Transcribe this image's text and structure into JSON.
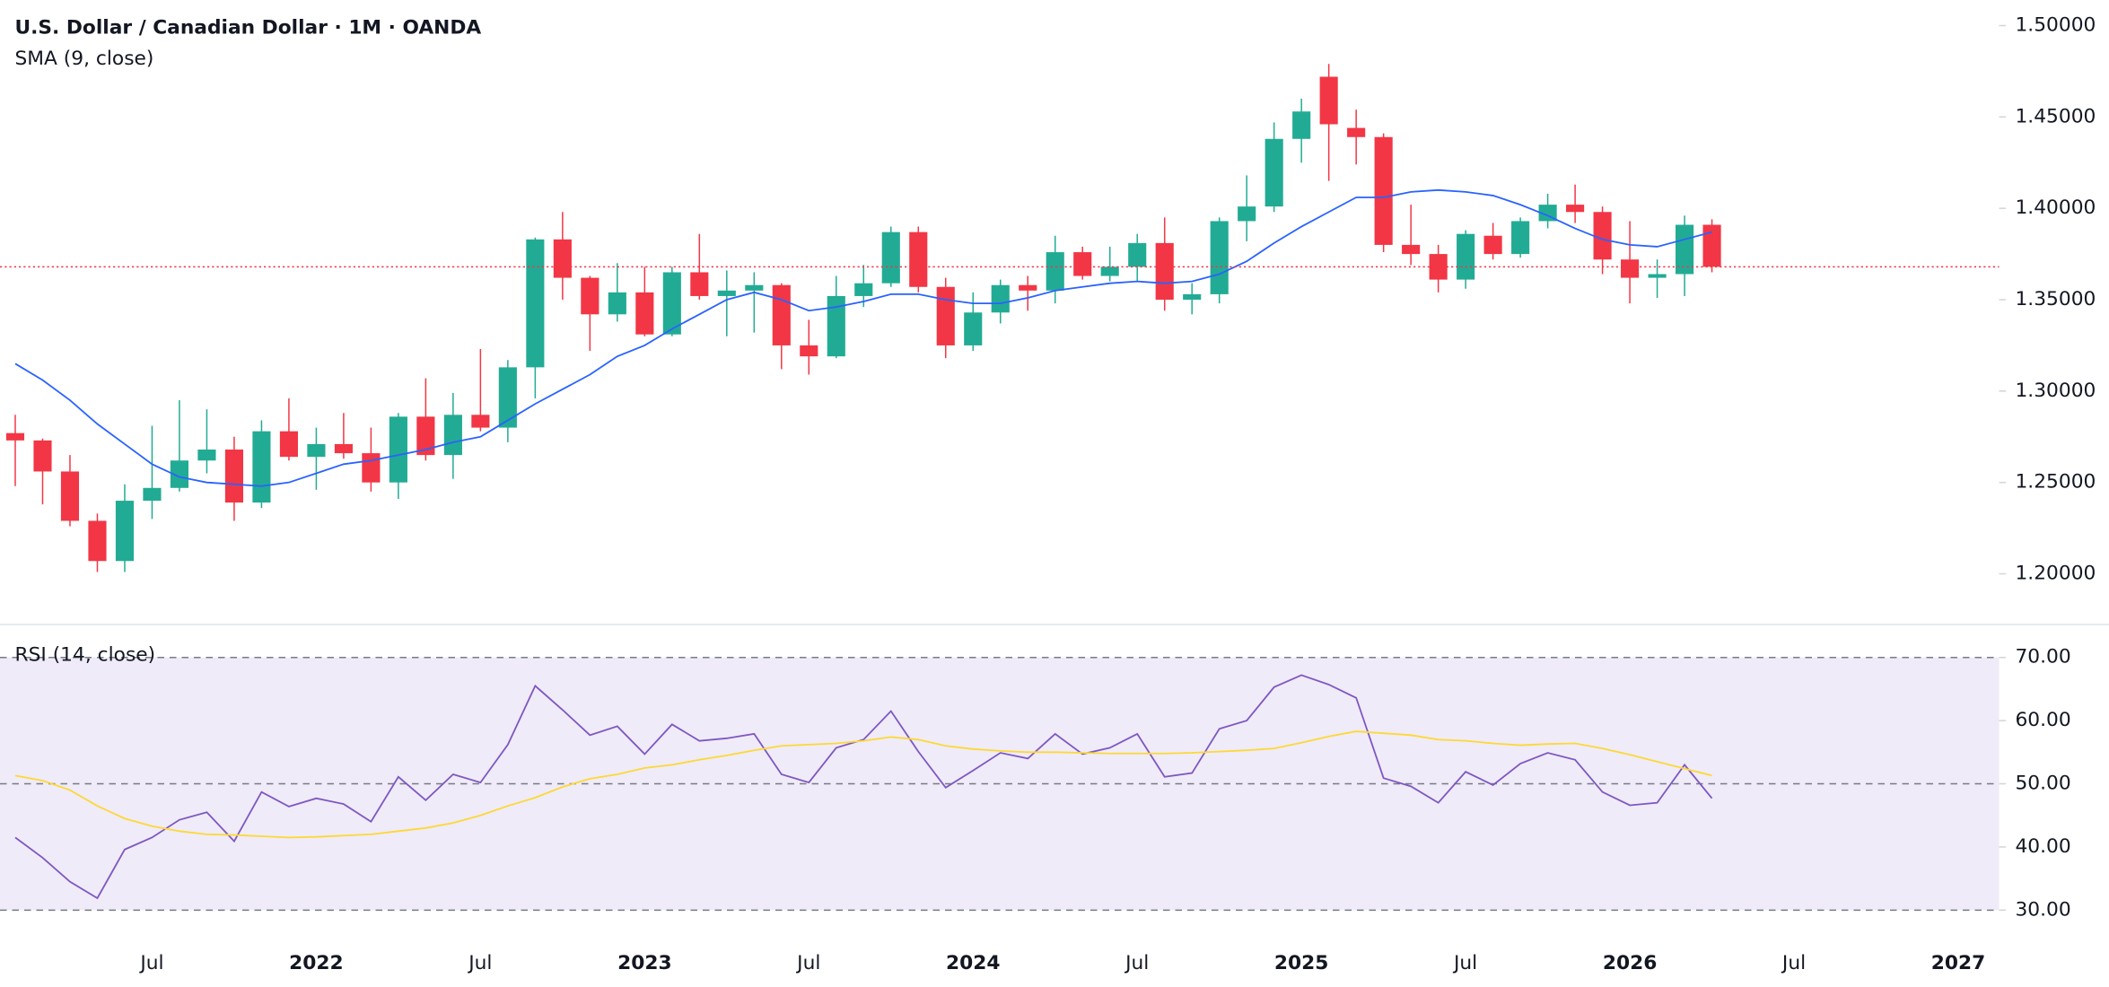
{
  "chart_data": [
    {
      "type": "candlestick",
      "title": "U.S. Dollar / Canadian Dollar · 1M · OANDA",
      "x": [
        "2021-02",
        "2021-03",
        "2021-04",
        "2021-05",
        "2021-06",
        "2021-07",
        "2021-08",
        "2021-09",
        "2021-10",
        "2021-11",
        "2021-12",
        "2022-01",
        "2022-02",
        "2022-03",
        "2022-04",
        "2022-05",
        "2022-06",
        "2022-07",
        "2022-08",
        "2022-09",
        "2022-10",
        "2022-11",
        "2022-12",
        "2023-01",
        "2023-02",
        "2023-03",
        "2023-04",
        "2023-05",
        "2023-06",
        "2023-07",
        "2023-08",
        "2023-09",
        "2023-10",
        "2023-11",
        "2023-12",
        "2024-01",
        "2024-02",
        "2024-03",
        "2024-04",
        "2024-05",
        "2024-06",
        "2024-07",
        "2024-08",
        "2024-09",
        "2024-10",
        "2024-11",
        "2024-12",
        "2025-01",
        "2025-02",
        "2025-03",
        "2025-04",
        "2025-05",
        "2025-06",
        "2025-07",
        "2025-08",
        "2025-09",
        "2025-10",
        "2025-11",
        "2025-12",
        "2026-01",
        "2026-02",
        "2026-03",
        "2026-04"
      ],
      "open": [
        1.277,
        1.273,
        1.256,
        1.229,
        1.207,
        1.24,
        1.247,
        1.262,
        1.268,
        1.239,
        1.278,
        1.264,
        1.271,
        1.266,
        1.25,
        1.286,
        1.265,
        1.287,
        1.28,
        1.313,
        1.383,
        1.362,
        1.342,
        1.354,
        1.331,
        1.365,
        1.352,
        1.355,
        1.358,
        1.325,
        1.319,
        1.352,
        1.359,
        1.387,
        1.357,
        1.325,
        1.343,
        1.358,
        1.355,
        1.376,
        1.363,
        1.368,
        1.381,
        1.35,
        1.353,
        1.393,
        1.401,
        1.438,
        1.472,
        1.444,
        1.439,
        1.38,
        1.375,
        1.361,
        1.385,
        1.375,
        1.393,
        1.402,
        1.398,
        1.372,
        1.362,
        1.364,
        1.391
      ],
      "high": [
        1.287,
        1.274,
        1.265,
        1.233,
        1.249,
        1.281,
        1.295,
        1.29,
        1.275,
        1.284,
        1.296,
        1.28,
        1.288,
        1.28,
        1.288,
        1.307,
        1.299,
        1.323,
        1.317,
        1.384,
        1.398,
        1.363,
        1.37,
        1.368,
        1.368,
        1.386,
        1.366,
        1.365,
        1.359,
        1.339,
        1.363,
        1.369,
        1.39,
        1.39,
        1.362,
        1.354,
        1.361,
        1.363,
        1.385,
        1.379,
        1.379,
        1.386,
        1.395,
        1.359,
        1.395,
        1.418,
        1.447,
        1.46,
        1.479,
        1.454,
        1.441,
        1.402,
        1.38,
        1.388,
        1.392,
        1.395,
        1.408,
        1.413,
        1.401,
        1.393,
        1.372,
        1.396,
        1.394
      ],
      "low": [
        1.248,
        1.238,
        1.226,
        1.201,
        1.201,
        1.23,
        1.245,
        1.255,
        1.229,
        1.236,
        1.262,
        1.246,
        1.263,
        1.245,
        1.241,
        1.262,
        1.252,
        1.278,
        1.272,
        1.296,
        1.35,
        1.322,
        1.338,
        1.33,
        1.33,
        1.35,
        1.33,
        1.332,
        1.312,
        1.309,
        1.318,
        1.346,
        1.357,
        1.354,
        1.318,
        1.322,
        1.337,
        1.344,
        1.348,
        1.361,
        1.36,
        1.36,
        1.344,
        1.342,
        1.348,
        1.382,
        1.398,
        1.425,
        1.415,
        1.424,
        1.376,
        1.369,
        1.354,
        1.356,
        1.372,
        1.373,
        1.389,
        1.392,
        1.364,
        1.348,
        1.351,
        1.352,
        1.365
      ],
      "close": [
        1.273,
        1.256,
        1.229,
        1.207,
        1.24,
        1.247,
        1.262,
        1.268,
        1.239,
        1.278,
        1.264,
        1.271,
        1.266,
        1.25,
        1.286,
        1.265,
        1.287,
        1.28,
        1.313,
        1.383,
        1.362,
        1.342,
        1.354,
        1.331,
        1.365,
        1.352,
        1.355,
        1.358,
        1.325,
        1.319,
        1.352,
        1.359,
        1.387,
        1.357,
        1.325,
        1.343,
        1.358,
        1.355,
        1.376,
        1.363,
        1.368,
        1.381,
        1.35,
        1.353,
        1.393,
        1.401,
        1.438,
        1.453,
        1.446,
        1.439,
        1.38,
        1.375,
        1.361,
        1.386,
        1.375,
        1.393,
        1.402,
        1.398,
        1.372,
        1.362,
        1.364,
        1.391,
        1.368
      ],
      "series": [
        {
          "name": "SMA (9, close)",
          "color": "#2962ff",
          "values": [
            1.315,
            1.306,
            1.295,
            1.282,
            1.271,
            1.26,
            1.253,
            1.25,
            1.249,
            1.248,
            1.25,
            1.255,
            1.26,
            1.262,
            1.265,
            1.268,
            1.272,
            1.275,
            1.284,
            1.293,
            1.301,
            1.309,
            1.319,
            1.325,
            1.334,
            1.342,
            1.35,
            1.354,
            1.35,
            1.344,
            1.346,
            1.349,
            1.353,
            1.353,
            1.35,
            1.348,
            1.348,
            1.351,
            1.355,
            1.357,
            1.359,
            1.36,
            1.359,
            1.36,
            1.364,
            1.371,
            1.381,
            1.39,
            1.398,
            1.406,
            1.406,
            1.409,
            1.41,
            1.409,
            1.407,
            1.402,
            1.396,
            1.389,
            1.383,
            1.38,
            1.379,
            1.383,
            1.387
          ]
        }
      ],
      "up_color": "#22ab94",
      "down_color": "#f23645",
      "xlim": [
        "2021-01",
        "2027-02"
      ],
      "ylim": [
        1.173,
        1.514
      ],
      "yticks": [
        {
          "value": 1.5,
          "label": "1.50000"
        },
        {
          "value": 1.45,
          "label": "1.45000"
        },
        {
          "value": 1.4,
          "label": "1.40000"
        },
        {
          "value": 1.35,
          "label": "1.35000"
        },
        {
          "value": 1.3,
          "label": "1.30000"
        },
        {
          "value": 1.25,
          "label": "1.25000"
        },
        {
          "value": 1.2,
          "label": "1.20000"
        }
      ]
    },
    {
      "type": "line",
      "title": "RSI (14, close)",
      "x": [
        "2021-02",
        "2021-03",
        "2021-04",
        "2021-05",
        "2021-06",
        "2021-07",
        "2021-08",
        "2021-09",
        "2021-10",
        "2021-11",
        "2021-12",
        "2022-01",
        "2022-02",
        "2022-03",
        "2022-04",
        "2022-05",
        "2022-06",
        "2022-07",
        "2022-08",
        "2022-09",
        "2022-10",
        "2022-11",
        "2022-12",
        "2023-01",
        "2023-02",
        "2023-03",
        "2023-04",
        "2023-05",
        "2023-06",
        "2023-07",
        "2023-08",
        "2023-09",
        "2023-10",
        "2023-11",
        "2023-12",
        "2024-01",
        "2024-02",
        "2024-03",
        "2024-04",
        "2024-05",
        "2024-06",
        "2024-07",
        "2024-08",
        "2024-09",
        "2024-10",
        "2024-11",
        "2024-12",
        "2025-01",
        "2025-02",
        "2025-03",
        "2025-04",
        "2025-05",
        "2025-06",
        "2025-07",
        "2025-08",
        "2025-09",
        "2025-10",
        "2025-11",
        "2025-12",
        "2026-01",
        "2026-02",
        "2026-03",
        "2026-04"
      ],
      "series": [
        {
          "color": "#7e57c2",
          "values": [
            41.5,
            38.3,
            34.5,
            31.9,
            39.6,
            41.5,
            44.3,
            45.5,
            40.9,
            48.7,
            46.4,
            47.7,
            46.8,
            44.0,
            51.1,
            47.4,
            51.5,
            50.2,
            56.2,
            65.5,
            61.7,
            57.7,
            59.1,
            54.7,
            59.4,
            56.8,
            57.2,
            57.9,
            51.5,
            50.2,
            55.7,
            57.0,
            61.5,
            55.1,
            49.4,
            52.1,
            54.9,
            54.0,
            57.9,
            54.7,
            55.7,
            57.9,
            51.1,
            51.7,
            58.7,
            60.0,
            65.3,
            67.2,
            65.7,
            63.6,
            50.9,
            49.6,
            47.0,
            51.9,
            49.8,
            53.2,
            54.9,
            53.8,
            48.7,
            46.6,
            47.0,
            53.0,
            47.7
          ]
        },
        {
          "color": "#fdd835",
          "values": [
            51.3,
            50.5,
            49.0,
            46.5,
            44.5,
            43.3,
            42.5,
            42.0,
            41.9,
            41.7,
            41.5,
            41.6,
            41.8,
            42.0,
            42.5,
            43.0,
            43.8,
            45.0,
            46.5,
            47.8,
            49.5,
            50.8,
            51.5,
            52.5,
            53.0,
            53.8,
            54.5,
            55.3,
            56.0,
            56.2,
            56.4,
            56.8,
            57.4,
            57.0,
            56.0,
            55.5,
            55.2,
            55.0,
            55.0,
            54.9,
            54.8,
            54.8,
            54.8,
            54.9,
            55.1,
            55.3,
            55.6,
            56.5,
            57.5,
            58.3,
            58.0,
            57.7,
            57.0,
            56.8,
            56.4,
            56.1,
            56.3,
            56.4,
            55.6,
            54.6,
            53.5,
            52.4,
            51.3
          ]
        }
      ],
      "levels": [
        70,
        50,
        30
      ],
      "band_color": "#7e57c2",
      "xlim": [
        "2021-01",
        "2027-02"
      ],
      "ylim": [
        26,
        75
      ],
      "yticks": [
        {
          "value": 70,
          "label": "70.00"
        },
        {
          "value": 60,
          "label": "60.00"
        },
        {
          "value": 50,
          "label": "50.00"
        },
        {
          "value": 40,
          "label": "40.00"
        },
        {
          "value": 30,
          "label": "30.00"
        }
      ],
      "xticks": [
        {
          "value": "2021-07",
          "label": "Jul"
        },
        {
          "value": "2022-01",
          "label": "2022"
        },
        {
          "value": "2022-07",
          "label": "Jul"
        },
        {
          "value": "2023-01",
          "label": "2023"
        },
        {
          "value": "2023-07",
          "label": "Jul"
        },
        {
          "value": "2024-01",
          "label": "2024"
        },
        {
          "value": "2024-07",
          "label": "Jul"
        },
        {
          "value": "2025-01",
          "label": "2025"
        },
        {
          "value": "2025-07",
          "label": "Jul"
        },
        {
          "value": "2026-01",
          "label": "2026"
        },
        {
          "value": "2026-07",
          "label": "Jul"
        },
        {
          "value": "2027-01",
          "label": "2027"
        }
      ]
    }
  ]
}
